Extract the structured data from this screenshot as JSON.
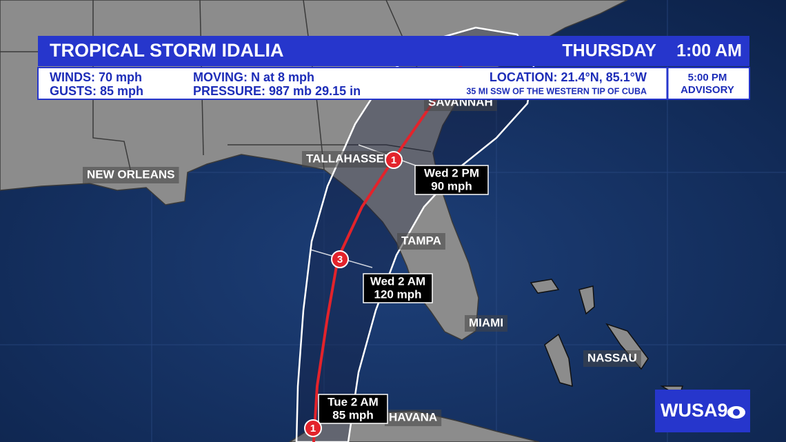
{
  "header": {
    "title": "TROPICAL STORM IDALIA",
    "day": "THURSDAY",
    "time": "1:00 AM"
  },
  "conditions": {
    "winds": "WINDS: 70 mph",
    "gusts": "GUSTS: 85 mph",
    "moving": "MOVING: N at 8 mph",
    "pressure": "PRESSURE: 987 mb 29.15 in",
    "location": "LOCATION: 21.4°N, 85.1°W",
    "location_note": "35 MI SSW OF THE WESTERN TIP OF CUBA"
  },
  "advisory": {
    "time": "5:00 PM",
    "label": "ADVISORY"
  },
  "cities": [
    "SAVANNAH",
    "TALLAHASSEE",
    "NEW ORLEANS",
    "TAMPA",
    "MIAMI",
    "NASSAU",
    "HAVANA"
  ],
  "forecast_points": [
    {
      "category": "1",
      "time": "Wed 2 PM",
      "wind": "90 mph"
    },
    {
      "category": "3",
      "time": "Wed 2 AM",
      "wind": "120 mph"
    },
    {
      "category": "1",
      "time": "Tue 2 AM",
      "wind": "85 mph"
    }
  ],
  "logo": "WUSA9"
}
